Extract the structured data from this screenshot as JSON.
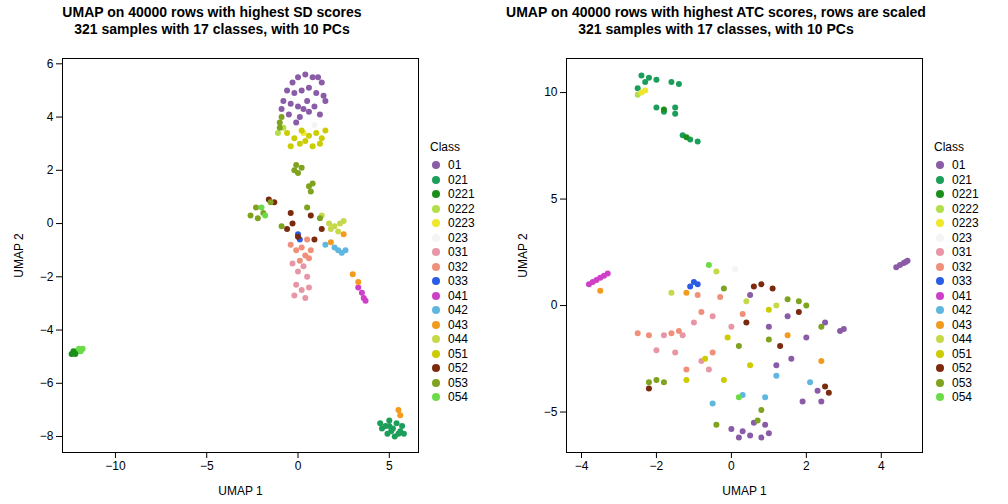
{
  "chart_data": [
    {
      "type": "scatter",
      "title": "UMAP on 40000 rows with highest SD scores",
      "subtitle": "321 samples with 17 classes, with 10 PCs",
      "x_label": "UMAP 1",
      "y_label": "UMAP 2",
      "legend": "right",
      "legend_title": "Class",
      "xlim": [
        -12.9,
        6.6
      ],
      "xticks": [
        -10,
        -5,
        0,
        5
      ],
      "ylim": [
        -8.6,
        6.2
      ],
      "yticks": [
        -8,
        -6,
        -4,
        -2,
        0,
        2,
        4,
        6
      ],
      "series": [
        {
          "name": "01",
          "color": "#8a5ba6",
          "x": [
            -0.3,
            0,
            0.4,
            0.8,
            1.1,
            1.3,
            -0.6,
            -0.2,
            0.2,
            0.6,
            1.0,
            1.4,
            -0.8,
            -0.4,
            0,
            0.5,
            0.9,
            1.5,
            -0.5,
            0.1,
            0.6,
            -0.1,
            0.3,
            -0.9,
            1.2
          ],
          "values": [
            5.3,
            5.5,
            5.6,
            5.5,
            5.5,
            5.3,
            5.0,
            4.9,
            5.0,
            5.1,
            4.9,
            4.8,
            4.6,
            4.5,
            4.4,
            4.6,
            4.4,
            4.6,
            4.1,
            4.0,
            4.2,
            3.8,
            4.3,
            4.3,
            4.1
          ]
        },
        {
          "name": "021",
          "color": "#1b9e5a",
          "x": [
            4.5,
            4.8,
            5.0,
            5.2,
            5.4,
            5.6,
            4.9,
            5.3,
            5.7,
            4.6,
            5.1,
            5.5,
            5.8,
            5.0
          ],
          "values": [
            -7.5,
            -7.6,
            -7.4,
            -7.7,
            -7.5,
            -7.8,
            -7.9,
            -8.0,
            -7.6,
            -7.7,
            -7.8,
            -7.9,
            -7.9,
            -7.6
          ]
        },
        {
          "name": "0221",
          "color": "#1a8f1a",
          "x": [
            -12.4,
            -12.3,
            -12.2,
            -12.1
          ],
          "values": [
            -4.9,
            -4.8,
            -4.9,
            -4.8
          ]
        },
        {
          "name": "0222",
          "color": "#b2df4a",
          "x": [
            -1.1,
            -0.8
          ],
          "values": [
            3.4,
            3.6
          ]
        },
        {
          "name": "0223",
          "color": "#f0e62a",
          "x": [
            0.3
          ],
          "values": [
            3.4
          ]
        },
        {
          "name": "023",
          "color": "#f4f4f4",
          "x": [
            0.9
          ],
          "values": [
            3.7
          ]
        },
        {
          "name": "031",
          "color": "#e896a6",
          "x": [
            -0.3,
            0,
            0.3,
            0.5,
            -0.1,
            0.2,
            0.6,
            0.4,
            -0.2
          ],
          "values": [
            -1.5,
            -1.8,
            -1.6,
            -2.0,
            -2.3,
            -2.5,
            -2.4,
            -2.8,
            -2.7
          ]
        },
        {
          "name": "032",
          "color": "#f0907a",
          "x": [
            -0.4,
            -0.1,
            0.2,
            0.4,
            0.6,
            0.1,
            0.7,
            0.5
          ],
          "values": [
            -0.8,
            -1.0,
            -0.9,
            -1.2,
            -1.3,
            -1.4,
            -1.0,
            -0.6
          ]
        },
        {
          "name": "033",
          "color": "#2b5ce6",
          "x": [
            0.0,
            0.1
          ],
          "values": [
            -0.4,
            -0.6
          ]
        },
        {
          "name": "041",
          "color": "#d03fc8",
          "x": [
            3.3,
            3.5,
            3.6,
            3.7
          ],
          "values": [
            -2.4,
            -2.6,
            -2.8,
            -2.9
          ]
        },
        {
          "name": "042",
          "color": "#5fb7e0",
          "x": [
            1.5,
            2.0,
            2.2,
            2.4,
            2.6
          ],
          "values": [
            -0.8,
            -0.9,
            -1.0,
            -1.1,
            -1.0
          ]
        },
        {
          "name": "043",
          "color": "#f29b1e",
          "x": [
            1.8,
            2.5,
            3.0,
            3.3,
            5.5,
            5.6
          ],
          "values": [
            -0.7,
            -0.4,
            -1.9,
            -2.2,
            -7.0,
            -7.2
          ]
        },
        {
          "name": "044",
          "color": "#c6d94a",
          "x": [
            1.7,
            2.0,
            2.3,
            2.5,
            1.8,
            2.2,
            1.3
          ],
          "values": [
            0.0,
            -0.1,
            0.0,
            0.1,
            -0.2,
            -0.3,
            0.3
          ]
        },
        {
          "name": "051",
          "color": "#cccc00",
          "x": [
            -0.6,
            -0.2,
            0.2,
            0.6,
            1.0,
            1.3,
            -0.4,
            0.1,
            0.8,
            1.2,
            0.4,
            1.5
          ],
          "values": [
            3.4,
            3.2,
            3.5,
            3.3,
            3.4,
            3.2,
            2.9,
            3.0,
            2.9,
            3.0,
            3.1,
            3.5
          ]
        },
        {
          "name": "052",
          "color": "#7b2a0e",
          "x": [
            -1.6,
            -1.3,
            -0.4,
            -0.3,
            0,
            0.7,
            1.3,
            0.9,
            -0.6
          ],
          "values": [
            0.9,
            0.8,
            0.4,
            0.0,
            -0.5,
            0.3,
            -0.2,
            -0.6,
            -0.2
          ]
        },
        {
          "name": "053",
          "color": "#7fa31f",
          "x": [
            -1.0,
            -1.0,
            -0.9,
            -0.1,
            0,
            0.2,
            -0.2,
            0.6,
            0.7,
            0.8,
            -2.6,
            -2.3,
            -1.9,
            -1.5,
            -2.2,
            -0.9,
            1.2,
            0.5
          ],
          "values": [
            3.8,
            3.6,
            4.0,
            2.2,
            1.9,
            2.1,
            2.0,
            1.4,
            1.2,
            1.5,
            0.3,
            0.6,
            0.4,
            0.8,
            0.2,
            -0.1,
            0.2,
            0.6
          ]
        },
        {
          "name": "054",
          "color": "#6bdc48",
          "x": [
            -12.0,
            -11.8,
            -11.9,
            -2.0,
            -1.8
          ],
          "values": [
            -4.7,
            -4.7,
            -4.8,
            0.6,
            0.3
          ]
        }
      ]
    },
    {
      "type": "scatter",
      "title": "UMAP on 40000 rows with highest ATC scores, rows are scaled",
      "subtitle": "321 samples with 17 classes, with 10 PCs",
      "x_label": "UMAP 1",
      "y_label": "UMAP 2",
      "legend": "right",
      "legend_title": "Class",
      "xlim": [
        -4.4,
        5.1
      ],
      "xticks": [
        -4,
        -2,
        0,
        2,
        4
      ],
      "ylim": [
        -6.9,
        11.6
      ],
      "yticks": [
        -5,
        0,
        5,
        10
      ],
      "series": [
        {
          "name": "01",
          "color": "#8a5ba6",
          "x": [
            4.4,
            4.5,
            4.6,
            4.7,
            4.65,
            0.0,
            0.3,
            0.5,
            0.8,
            1.0,
            0.2,
            0.6,
            0.9,
            1.0,
            1.5,
            2.0,
            2.5,
            2.9,
            3.0,
            1.2,
            1.9,
            2.3,
            2.4,
            1.6,
            0.5
          ],
          "values": [
            1.8,
            1.9,
            2.0,
            2.1,
            2.05,
            -5.8,
            -5.9,
            -6.1,
            -6.2,
            -6.0,
            -6.2,
            -5.5,
            -5.6,
            -1.0,
            -0.5,
            -1.5,
            -0.8,
            -1.2,
            -1.1,
            -2.8,
            -4.5,
            -4.0,
            -4.5,
            -2.5,
            0.5
          ]
        },
        {
          "name": "021",
          "color": "#1b9e5a",
          "x": [
            -2.4,
            -2.2,
            -2.0,
            -2.3,
            -1.6,
            -1.4,
            -2.0,
            -1.8,
            -1.5,
            -2.5,
            -1.3,
            -1.1,
            -0.9,
            -1.5
          ],
          "values": [
            10.8,
            10.7,
            10.6,
            10.5,
            10.5,
            10.4,
            9.3,
            9.1,
            9.0,
            10.2,
            8.0,
            7.8,
            7.7,
            9.3
          ]
        },
        {
          "name": "0221",
          "color": "#1a8f1a",
          "x": [
            -1.8,
            -1.2
          ],
          "values": [
            9.2,
            7.9
          ]
        },
        {
          "name": "0222",
          "color": "#b2df4a",
          "x": [
            -2.5
          ],
          "values": [
            9.9
          ]
        },
        {
          "name": "0223",
          "color": "#f0e62a",
          "x": [
            -2.4,
            -2.3
          ],
          "values": [
            10.0,
            10.1
          ]
        },
        {
          "name": "023",
          "color": "#f4f4f4",
          "x": [
            0.1
          ],
          "values": [
            1.7
          ]
        },
        {
          "name": "031",
          "color": "#e896a6",
          "x": [
            -2.0,
            -1.5,
            -1.8,
            -0.5,
            -1.0,
            -1.3,
            -0.8,
            -0.6,
            0
          ],
          "values": [
            -2.1,
            -2.2,
            -1.4,
            -0.5,
            -0.8,
            -1.4,
            -2.6,
            -3.0,
            -1.0
          ]
        },
        {
          "name": "032",
          "color": "#f0907a",
          "x": [
            -2.5,
            -2.2,
            -1.6,
            -1.4,
            -0.8,
            -0.3,
            -1.2,
            -0.5,
            -0.9,
            0.3
          ],
          "values": [
            -1.3,
            -1.4,
            -1.3,
            -1.2,
            -0.3,
            0.4,
            -3.0,
            -2.2,
            0.5,
            -0.4
          ]
        },
        {
          "name": "033",
          "color": "#2b5ce6",
          "x": [
            -1.0,
            -1.1,
            -0.9
          ],
          "values": [
            1.1,
            0.9,
            1.0
          ]
        },
        {
          "name": "041",
          "color": "#d03fc8",
          "x": [
            -3.8,
            -3.7,
            -3.6,
            -3.5,
            -3.4,
            -3.3
          ],
          "values": [
            1.0,
            1.1,
            1.2,
            1.3,
            1.4,
            1.5
          ]
        },
        {
          "name": "042",
          "color": "#5fb7e0",
          "x": [
            -0.5,
            0.3,
            1.2,
            2.1,
            0.9
          ],
          "values": [
            -4.6,
            -4.2,
            -3.3,
            -3.6,
            -4.3
          ]
        },
        {
          "name": "043",
          "color": "#f29b1e",
          "x": [
            -3.5,
            -1.2,
            1.5,
            2.4
          ],
          "values": [
            0.7,
            0.6,
            -1.4,
            -2.6
          ]
        },
        {
          "name": "044",
          "color": "#c6d94a",
          "x": [
            -1.6,
            -0.4,
            0.4,
            1.2
          ],
          "values": [
            0.6,
            1.6,
            0.2,
            0.0
          ]
        },
        {
          "name": "051",
          "color": "#cccc00",
          "x": [
            -0.7,
            -0.2,
            0.5,
            1.0,
            -0.1,
            -1.2
          ],
          "values": [
            -2.5,
            -3.5,
            -2.8,
            -0.2,
            -1.5,
            -3.5
          ]
        },
        {
          "name": "052",
          "color": "#7b2a0e",
          "x": [
            0.8,
            1.1,
            0.4,
            1.8,
            2.5,
            2.6,
            -2.2,
            1.3,
            0.6
          ],
          "values": [
            1.0,
            0.8,
            -0.8,
            -0.3,
            -3.8,
            -4.1,
            -3.9,
            -1.9,
            0.9
          ]
        },
        {
          "name": "053",
          "color": "#7fa31f",
          "x": [
            -2.2,
            -2.0,
            -1.8,
            1.5,
            1.8,
            2.0,
            2.4,
            0.2,
            -0.2,
            1.0,
            0.8,
            -0.4,
            0.7
          ],
          "values": [
            -3.6,
            -3.5,
            -3.6,
            0.3,
            0.2,
            0.0,
            -1.0,
            -1.9,
            0.8,
            -1.6,
            -4.9,
            -5.6,
            -5.4
          ]
        },
        {
          "name": "054",
          "color": "#6bdc48",
          "x": [
            -0.6,
            0.2
          ],
          "values": [
            1.9,
            -4.3
          ]
        }
      ]
    }
  ]
}
